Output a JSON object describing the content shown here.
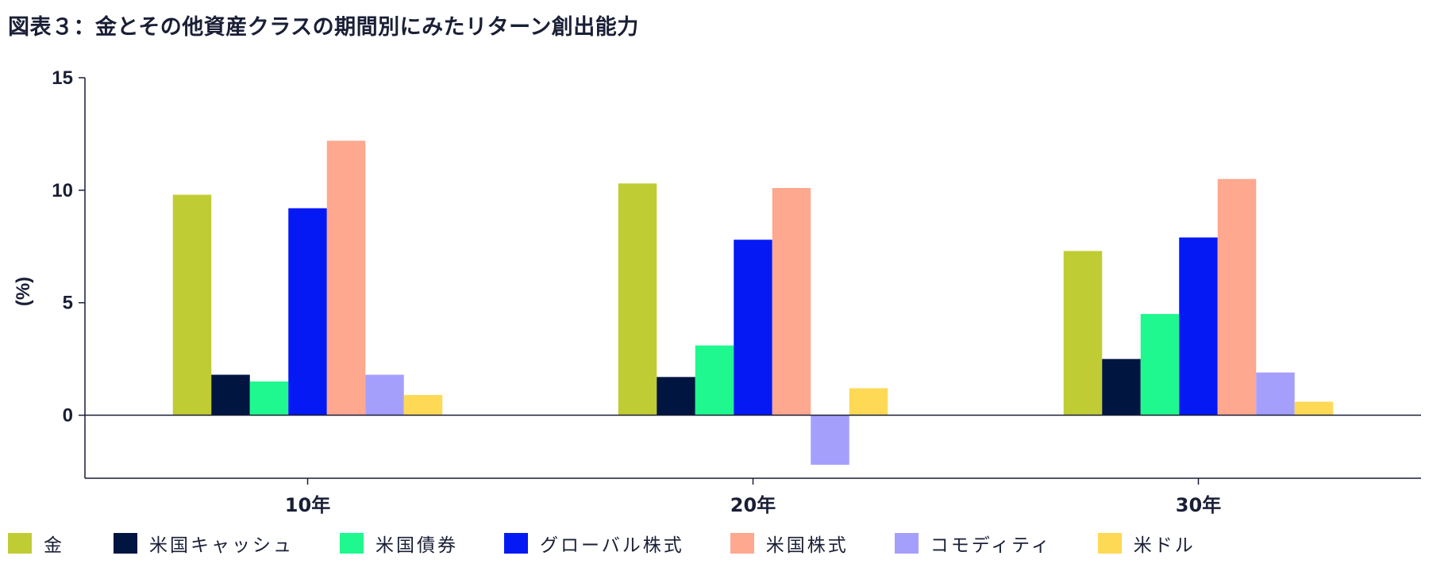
{
  "title": "図表３：金とその他資産クラスの期間別にみたリターン創出能力",
  "chart_data": {
    "type": "bar",
    "title": "図表３：金とその他資産クラスの期間別にみたリターン創出能力",
    "xlabel": "",
    "ylabel": "(%)",
    "ylim": [
      -2.8,
      15
    ],
    "yticks": [
      0,
      5,
      10,
      15
    ],
    "grid": false,
    "legend_position": "bottom",
    "categories": [
      "10年",
      "20年",
      "30年"
    ],
    "series": [
      {
        "name": "金",
        "color": "#c0cc33",
        "values": [
          9.8,
          10.3,
          7.3
        ]
      },
      {
        "name": "米国キャッシュ",
        "color": "#001540",
        "values": [
          1.8,
          1.7,
          2.5
        ]
      },
      {
        "name": "米国債券",
        "color": "#1ef88e",
        "values": [
          1.5,
          3.1,
          4.5
        ]
      },
      {
        "name": "グローバル株式",
        "color": "#0519f5",
        "values": [
          9.2,
          7.8,
          7.9
        ]
      },
      {
        "name": "米国株式",
        "color": "#fda88f",
        "values": [
          12.2,
          10.1,
          10.5
        ]
      },
      {
        "name": "コモディティ",
        "color": "#a59ffc",
        "values": [
          1.8,
          -2.2,
          1.9
        ]
      },
      {
        "name": "米ドル",
        "color": "#fdd955",
        "values": [
          0.9,
          1.2,
          0.6
        ]
      }
    ]
  }
}
